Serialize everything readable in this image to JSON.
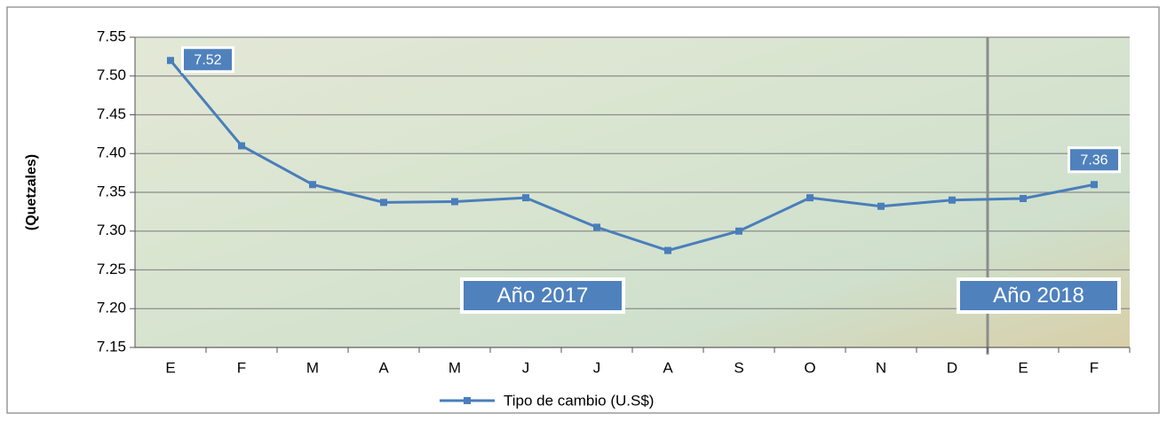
{
  "chart_data": {
    "type": "line",
    "y_label": "(Quetzales)",
    "categories": [
      "E",
      "F",
      "M",
      "A",
      "M",
      "J",
      "J",
      "A",
      "S",
      "O",
      "N",
      "D",
      "E",
      "F"
    ],
    "series": [
      {
        "name": "Tipo de cambio (U.S$)",
        "color": "#4a7ebb",
        "values": [
          7.52,
          7.41,
          7.36,
          7.337,
          7.338,
          7.343,
          7.305,
          7.275,
          7.3,
          7.343,
          7.332,
          7.34,
          7.342,
          7.36
        ],
        "value_labels": [
          "7.52",
          null,
          null,
          null,
          null,
          null,
          null,
          null,
          null,
          null,
          null,
          null,
          null,
          "7.36"
        ]
      }
    ],
    "ylim": [
      7.15,
      7.55
    ],
    "yticks": [
      7.55,
      {
        "value": 7.5,
        "label": "7.50"
      },
      7.45,
      {
        "value": 7.4,
        "label": "7.40"
      },
      7.35,
      {
        "value": 7.3,
        "label": "7.30"
      },
      7.25,
      {
        "value": 7.2,
        "label": "7.20"
      },
      7.15
    ],
    "grid": true,
    "annotations": [
      "Año 2017",
      "Año 2018"
    ]
  }
}
